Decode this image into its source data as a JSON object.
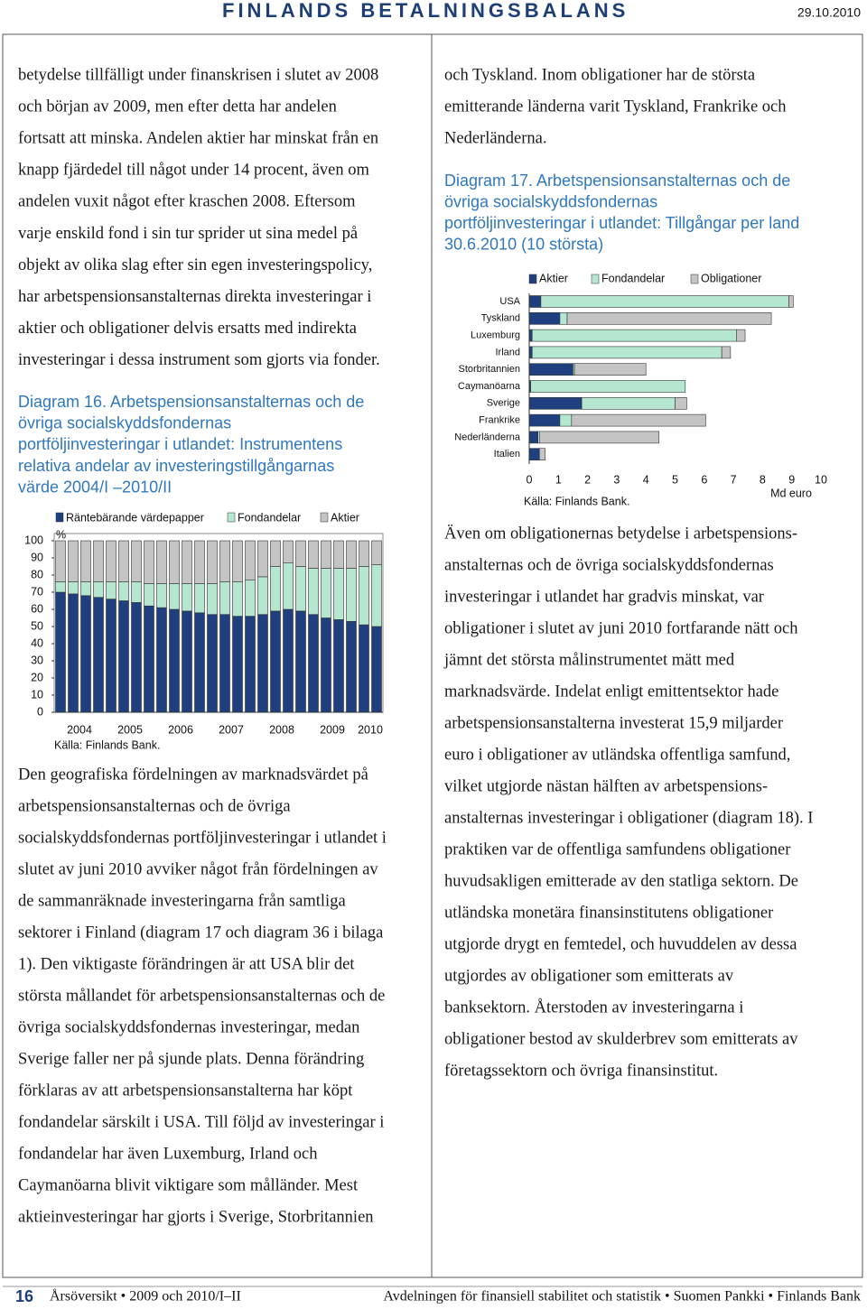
{
  "header": {
    "title": "FINLANDS BETALNINGSBALANS",
    "date": "29.10.2010"
  },
  "body": {
    "left_top": [
      "betydelse tillfälligt under finanskrisen i slutet av 2008",
      "och början av 2009, men efter detta har andelen",
      "fortsatt att minska. Andelen aktier har minskat från en",
      "knapp fjärdedel till något under 14 procent, även om",
      "andelen vuxit något efter kraschen 2008. Eftersom",
      "varje enskild fond i sin tur sprider ut sina medel på",
      "objekt av olika slag efter sin egen investeringspolicy,",
      "har arbetspensionsanstalternas direkta investeringar i",
      "aktier och obligationer delvis ersatts med indirekta",
      "investeringar i dessa instrument som gjorts via fonder."
    ],
    "left_bottom": [
      "Den geografiska fördelningen av marknadsvärdet på",
      "arbetspensionsanstalternas och de övriga",
      "socialskyddsfondernas portföljinvesteringar i utlandet i",
      "slutet av juni 2010 avviker något från fördelningen av",
      "de sammanräknade investeringarna från samtliga",
      "sektorer i Finland (diagram 17 och diagram 36 i bilaga",
      "1). Den viktigaste förändringen är att USA blir det",
      "största mållandet för arbetspensionsanstalternas och de",
      "övriga socialskyddsfondernas investeringar, medan",
      "Sverige faller ner på sjunde plats. Denna förändring",
      "förklaras av att arbetspensionsanstalterna har köpt",
      "fondandelar särskilt i USA. Till följd av investeringar i",
      "fondandelar har även Luxemburg, Irland och",
      "Caymanöarna blivit viktigare som målländer. Mest",
      "aktieinvesteringar har gjorts i Sverige, Storbritannien"
    ],
    "right_top": [
      "och Tyskland. Inom obligationer har de största",
      "emitterande länderna varit Tyskland, Frankrike och",
      "Nederländerna."
    ],
    "right_bottom": [
      "Även om obligationernas betydelse i arbetspensions-",
      "anstalternas och de övriga socialskyddsfondernas",
      "investeringar i utlandet har gradvis minskat, var",
      "obligationer i slutet av juni 2010 fortfarande nätt och",
      "jämnt det största målinstrumentet mätt med",
      "marknadsvärde. Indelat enligt emittentsektor hade",
      "arbetspensionsanstalterna investerat 15,9 miljarder",
      "euro i obligationer av utländska offentliga samfund,",
      "vilket utgjorde nästan hälften av arbetspensions-",
      "anstalternas investeringar i obligationer (diagram 18). I",
      "praktiken var de offentliga samfundens obligationer",
      "huvudsakligen emitterade av den statliga sektorn. De",
      "utländska monetära finansinstitutens obligationer",
      "utgjorde drygt en femtedel, och huvuddelen av dessa",
      "utgjordes av obligationer som emitterats av",
      "banksektorn. Återstoden av investeringarna i",
      "obligationer bestod av skulderbrev som emitterats av",
      "företagssektorn och övriga finansinstitut."
    ]
  },
  "chart_data": [
    {
      "type": "bar",
      "stacked": true,
      "title": [
        "Diagram 16. Arbetspensionsanstalternas och de",
        "övriga socialskyddsfondernas",
        "portföljinvesteringar i utlandet: Instrumentens",
        "relativa andelar av investeringstillgångarnas",
        "värde 2004/I –2010/II"
      ],
      "ylabel": "%",
      "source": "Källa: Finlands Bank.",
      "categories": [
        "2004",
        null,
        null,
        null,
        "2005",
        null,
        null,
        null,
        "2006",
        null,
        null,
        null,
        "2007",
        null,
        null,
        null,
        "2008",
        null,
        null,
        null,
        "2009",
        null,
        null,
        null,
        "2010",
        null
      ],
      "series": [
        {
          "name": "Räntebärande värdepapper",
          "color": "#1f3f7f",
          "values": [
            70,
            69,
            68,
            67,
            66,
            65,
            64,
            62,
            61,
            60,
            59,
            58,
            57,
            57,
            56,
            56,
            57,
            59,
            60,
            59,
            57,
            55,
            54,
            53,
            51,
            50
          ]
        },
        {
          "name": "Fondandelar",
          "color": "#b5e6cf",
          "values": [
            6,
            7,
            8,
            9,
            10,
            11,
            12,
            13,
            14,
            15,
            16,
            17,
            18,
            19,
            20,
            21,
            22,
            26,
            27,
            26,
            27,
            29,
            30,
            31,
            34,
            36
          ]
        },
        {
          "name": "Aktier",
          "color": "#c4c4c4",
          "values": [
            24,
            24,
            24,
            24,
            24,
            24,
            24,
            25,
            25,
            25,
            25,
            25,
            25,
            24,
            24,
            23,
            21,
            15,
            13,
            15,
            16,
            16,
            16,
            16,
            15,
            14
          ]
        }
      ],
      "ylim": [
        0,
        100
      ],
      "yticks": [
        0,
        10,
        20,
        30,
        40,
        50,
        60,
        70,
        80,
        90,
        100
      ]
    },
    {
      "type": "barh",
      "stacked": true,
      "title": [
        "Diagram 17. Arbetspensionsanstalternas och de",
        "övriga socialskyddsfondernas",
        "portföljinvesteringar i utlandet: Tillgångar per land",
        "30.6.2010 (10 största)"
      ],
      "xlabel": "Md euro",
      "source": "Källa: Finlands Bank.",
      "categories": [
        "USA",
        "Tyskland",
        "Luxemburg",
        "Irland",
        "Storbritannien",
        "Caymanöarna",
        "Sverige",
        "Frankrike",
        "Nederländerna",
        "Italien"
      ],
      "series": [
        {
          "name": "Aktier",
          "color": "#1f3f7f",
          "values": [
            0.4,
            1.05,
            0.1,
            0.1,
            1.5,
            0.05,
            1.8,
            1.05,
            0.3,
            0.35
          ]
        },
        {
          "name": "Fondandelar",
          "color": "#b5e6cf",
          "values": [
            8.5,
            0.25,
            7.0,
            6.5,
            0.05,
            5.3,
            3.2,
            0.4,
            0.05,
            0
          ]
        },
        {
          "name": "Obligationer",
          "color": "#c4c4c4",
          "values": [
            0.15,
            7.0,
            0.3,
            0.3,
            2.45,
            0,
            0.4,
            4.6,
            4.1,
            0.2
          ]
        }
      ],
      "xlim": [
        0,
        10
      ],
      "xticks": [
        0,
        1,
        2,
        3,
        4,
        5,
        6,
        7,
        8,
        9,
        10
      ]
    }
  ],
  "footer": {
    "page": "16",
    "left": "Årsöversikt • 2009 och 2010/I–II",
    "right": "Avdelningen för finansiell stabilitet och statistik • Suomen Pankki • Finlands Bank"
  }
}
